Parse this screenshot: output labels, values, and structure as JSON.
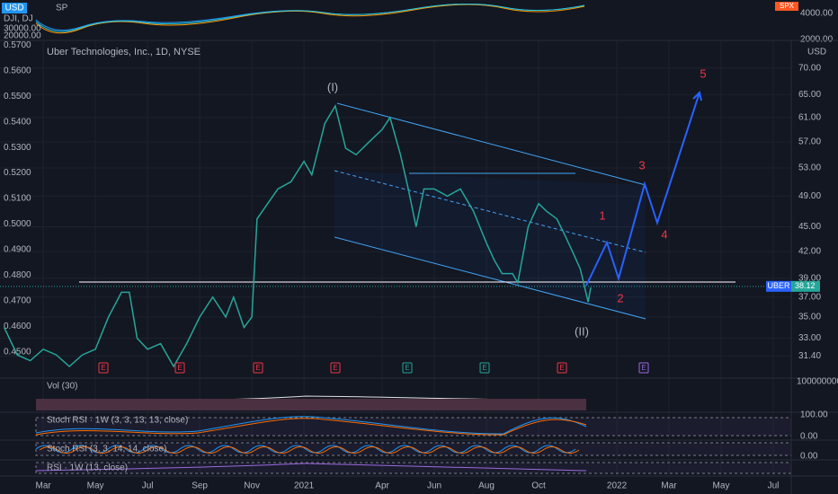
{
  "chart_data": {
    "type": "line",
    "title": "Uber Technologies, Inc., 1D, NYSE",
    "currency": "USD",
    "log_scale": true,
    "grid": true,
    "x": [
      -1.5,
      -1.0,
      -0.5,
      0,
      0.5,
      1.0,
      1.5,
      2.0,
      2.5,
      3.0,
      3.3,
      3.6,
      4.0,
      4.5,
      5.0,
      5.5,
      6.0,
      6.5,
      7.0,
      7.3,
      7.7,
      8.0,
      8.2,
      9.0,
      9.5,
      10.0,
      10.3,
      10.8,
      11.2,
      11.6,
      12.0,
      12.5,
      13.0,
      13.3,
      13.7,
      14.0,
      14.3,
      14.6,
      15.0,
      15.5,
      16.0,
      16.5,
      17.0,
      17.3,
      17.6,
      18.0,
      18.2,
      18.6,
      19.0,
      19.3,
      19.7,
      20.0,
      20.3,
      20.6,
      20.9,
      21.0
    ],
    "series": [
      {
        "name": "UBER",
        "color": "#26a69a",
        "values": [
          34,
          31.5,
          31,
          32,
          31.5,
          30.5,
          31.5,
          32,
          35,
          37.5,
          37.5,
          33,
          32,
          32.5,
          30.5,
          32.5,
          35,
          37,
          35,
          37,
          34,
          35,
          46,
          50,
          51,
          54,
          52,
          60,
          63,
          56,
          55,
          57,
          59,
          61,
          55,
          50,
          45,
          50,
          50,
          49,
          50,
          47,
          43,
          41,
          39.5,
          39.5,
          38.5,
          45,
          48,
          47,
          46,
          44,
          42,
          40,
          36.5,
          38
        ]
      }
    ],
    "last_price": 38.12,
    "xlim": [
      -1.66,
      28.69
    ],
    "xticks": [
      {
        "value": 0,
        "label": "Mar"
      },
      {
        "value": 2,
        "label": "May"
      },
      {
        "value": 4,
        "label": "Jul"
      },
      {
        "value": 6,
        "label": "Sep"
      },
      {
        "value": 8,
        "label": "Nov"
      },
      {
        "value": 10,
        "label": "2021"
      },
      {
        "value": 13,
        "label": "Apr"
      },
      {
        "value": 15,
        "label": "Jun"
      },
      {
        "value": 17,
        "label": "Aug"
      },
      {
        "value": 19,
        "label": "Oct"
      },
      {
        "value": 22,
        "label": "2022"
      },
      {
        "value": 24,
        "label": "Mar"
      },
      {
        "value": 26,
        "label": "May"
      },
      {
        "value": 28,
        "label": "Jul"
      }
    ],
    "ylim": [
      29.6,
      75.6
    ],
    "yticks": [
      {
        "value": 70,
        "label": "70.00"
      },
      {
        "value": 65,
        "label": "65.00"
      },
      {
        "value": 61,
        "label": "61.00"
      },
      {
        "value": 57,
        "label": "57.00"
      },
      {
        "value": 53,
        "label": "53.00"
      },
      {
        "value": 49,
        "label": "49.00"
      },
      {
        "value": 45,
        "label": "45.00"
      },
      {
        "value": 42,
        "label": "42.00"
      },
      {
        "value": 39,
        "label": "39.00"
      },
      {
        "value": 37,
        "label": "37.00"
      },
      {
        "value": 35,
        "label": "35.00"
      },
      {
        "value": 33,
        "label": "33.00"
      },
      {
        "value": 31.4,
        "label": "31.40"
      }
    ],
    "y2lim": [
      0.4402,
      0.5718
    ],
    "y2ticks": [
      {
        "value": 0.57,
        "label": "0.5700"
      },
      {
        "value": 0.56,
        "label": "0.5600"
      },
      {
        "value": 0.55,
        "label": "0.5500"
      },
      {
        "value": 0.54,
        "label": "0.5400"
      },
      {
        "value": 0.53,
        "label": "0.5300"
      },
      {
        "value": 0.52,
        "label": "0.5200"
      },
      {
        "value": 0.51,
        "label": "0.5100"
      },
      {
        "value": 0.5,
        "label": "0.5000"
      },
      {
        "value": 0.49,
        "label": "0.4900"
      },
      {
        "value": 0.48,
        "label": "0.4800"
      },
      {
        "value": 0.47,
        "label": "0.4700"
      },
      {
        "value": 0.46,
        "label": "0.4600"
      },
      {
        "value": 0.45,
        "label": "0.4500"
      }
    ],
    "annotations": [
      "(I)",
      "(II)",
      "1",
      "2",
      "3",
      "4",
      "5"
    ],
    "earnings": [
      "E",
      "E",
      "E",
      "E",
      "E",
      "E",
      "E",
      "E"
    ],
    "compare": {
      "symbols": [
        "SP",
        "DJI, DJ"
      ],
      "left_labels": [
        "30000.00",
        "20000.00"
      ],
      "right_labels": [
        "SPX",
        "4000.00",
        "2000.00"
      ]
    },
    "panes": {
      "volume": {
        "title": "Vol (30)",
        "label": "100000000"
      },
      "stoch_weekly": {
        "title": "Stoch RSI · 1W (3, 3, 13, 13, close)",
        "top": "100.00",
        "bottom": "0.00"
      },
      "stoch_daily": {
        "title": "Stoch RSI (3, 3, 14, 14, close)",
        "bottom": "0.00"
      },
      "rsi_weekly": {
        "title": "RSI · 1W (13, close)"
      }
    }
  }
}
